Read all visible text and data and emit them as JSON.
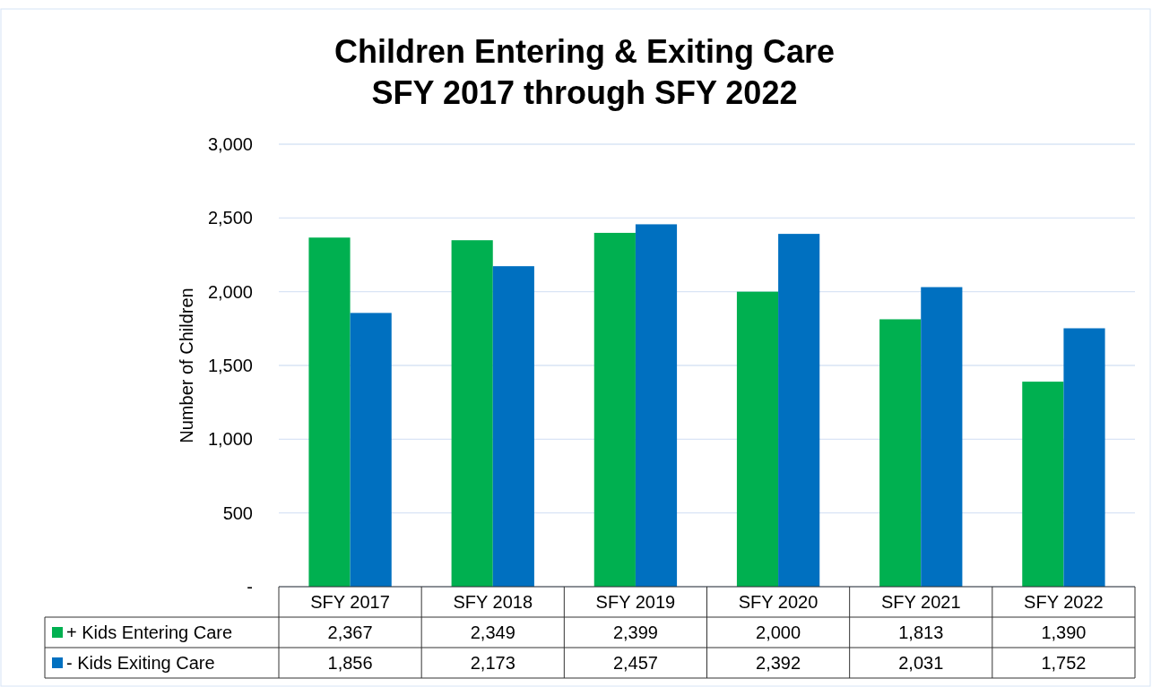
{
  "chart_data": {
    "type": "bar",
    "title": "Children Entering & Exiting Care\nSFY 2017 through SFY 2022",
    "ylabel": "Number of Children",
    "categories": [
      "SFY 2017",
      "SFY 2018",
      "SFY 2019",
      "SFY 2020",
      "SFY 2021",
      "SFY 2022"
    ],
    "series": [
      {
        "name": "+ Kids Entering Care",
        "color": "#00b050",
        "values": [
          2367,
          2349,
          2399,
          2000,
          1813,
          1390
        ],
        "value_labels": [
          "2,367",
          "2,349",
          "2,399",
          "2,000",
          "1,813",
          "1,390"
        ]
      },
      {
        "name": "- Kids Exiting Care",
        "color": "#0070c0",
        "values": [
          1856,
          2173,
          2457,
          2392,
          2031,
          1752
        ],
        "value_labels": [
          "1,856",
          "2,173",
          "2,457",
          "2,392",
          "2,031",
          "1,752"
        ]
      }
    ],
    "ylim": [
      0,
      3000
    ],
    "yticks": [
      {
        "value": 0,
        "label": "-"
      },
      {
        "value": 500,
        "label": "500"
      },
      {
        "value": 1000,
        "label": "1,000"
      },
      {
        "value": 1500,
        "label": "1,500"
      },
      {
        "value": 2000,
        "label": "2,000"
      },
      {
        "value": 2500,
        "label": "2,500"
      },
      {
        "value": 3000,
        "label": "3,000"
      }
    ],
    "grid": "y",
    "legend": "bottom"
  }
}
